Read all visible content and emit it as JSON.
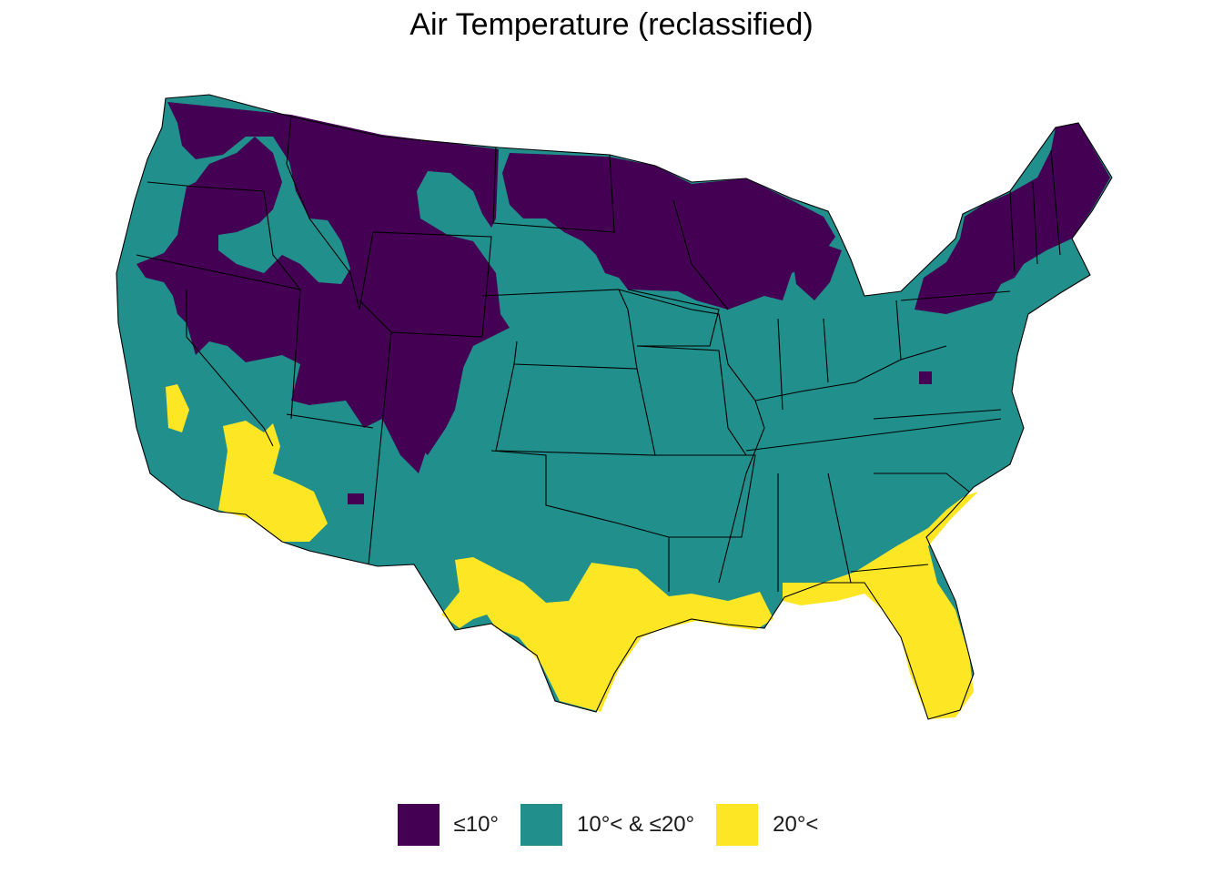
{
  "title": "Air Temperature (reclassified)",
  "legend": {
    "items": [
      {
        "label": "≤10°",
        "color": "#440154"
      },
      {
        "label": "10°< & ≤20°",
        "color": "#21908C"
      },
      {
        "label": "20°<",
        "color": "#FDE725"
      }
    ]
  },
  "map": {
    "region": "Contiguous United States",
    "boundaries": "state outlines",
    "background": "#FFFFFF",
    "border_color": "#000000"
  }
}
